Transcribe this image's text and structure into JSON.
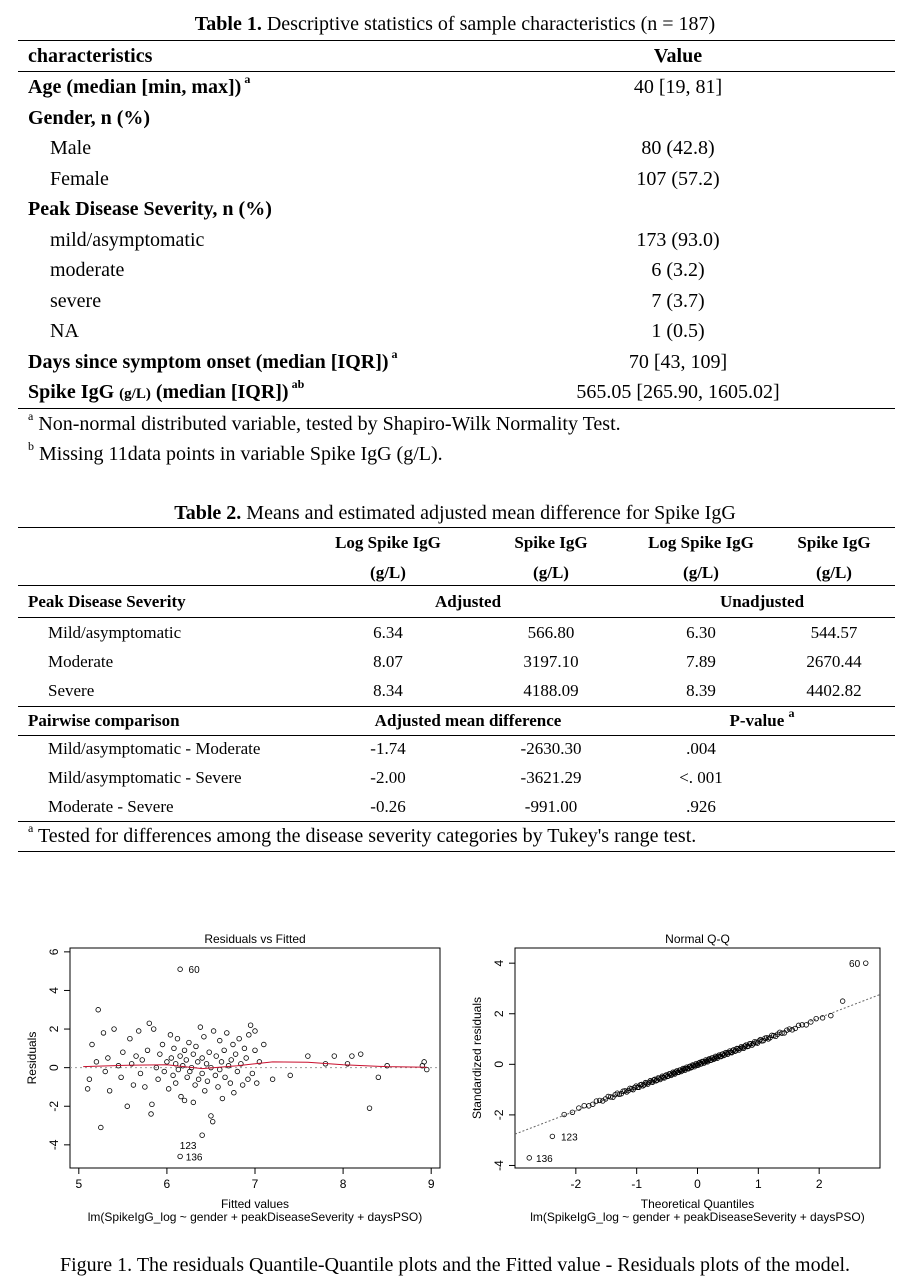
{
  "table1": {
    "label": "Table 1.",
    "title": " Descriptive statistics of sample characteristics (n = 187)",
    "header": {
      "col1": "characteristics",
      "col2": "Value"
    },
    "rows": [
      {
        "label": "Age (median [min, max])",
        "sup": "a",
        "value": "40 [19, 81]"
      },
      {
        "label": "Gender, n (%)",
        "value": ""
      },
      {
        "label": "Male",
        "value": "80 (42.8)"
      },
      {
        "label": "Female",
        "value": "107 (57.2)"
      },
      {
        "label": "Peak Disease Severity, n (%)",
        "value": ""
      },
      {
        "label": "mild/asymptomatic",
        "value": "173 (93.0)"
      },
      {
        "label": "moderate",
        "value": "6 (3.2)"
      },
      {
        "label": "severe",
        "value": "7 (3.7)"
      },
      {
        "label": "NA",
        "value": "1 (0.5)"
      },
      {
        "label": "Days since symptom onset (median [IQR])",
        "sup": "a",
        "value": "70 [43, 109]"
      },
      {
        "label_a": "Spike IgG ",
        "label_unit": "(g/L)",
        "label_b": " (median [IQR])",
        "sup": "ab",
        "value": "565.05 [265.90, 1605.02]"
      }
    ],
    "notes": [
      {
        "sup": "a",
        "text": " Non-normal distributed variable, tested by Shapiro-Wilk Normality Test."
      },
      {
        "sup": "b",
        "text": " Missing 11data points in variable Spike IgG (g/L)."
      }
    ]
  },
  "table2": {
    "label": "Table 2.",
    "title": " Means and estimated adjusted mean difference for Spike IgG",
    "col_headers": [
      {
        "line1": "Log Spike IgG",
        "line2": "(g/L)"
      },
      {
        "line1": "Spike IgG",
        "line2": "(g/L)"
      },
      {
        "line1": "Log Spike IgG",
        "line2": "(g/L)"
      },
      {
        "line1": "Spike IgG",
        "line2": "(g/L)"
      }
    ],
    "section1": {
      "label": "Peak Disease Severity",
      "group1": "Adjusted",
      "group2": "Unadjusted"
    },
    "rows1": [
      {
        "label": "Mild/asymptomatic",
        "v": [
          "6.34",
          "566.80",
          "6.30",
          "544.57"
        ]
      },
      {
        "label": "Moderate",
        "v": [
          "8.07",
          "3197.10",
          "7.89",
          "2670.44"
        ]
      },
      {
        "label": "Severe",
        "v": [
          "8.34",
          "4188.09",
          "8.39",
          "4402.82"
        ]
      }
    ],
    "section2": {
      "label": "Pairwise comparison",
      "group1": "Adjusted mean difference",
      "group2": "P-value",
      "group2_sup": "a"
    },
    "rows2": [
      {
        "label": "Mild/asymptomatic - Moderate",
        "v": [
          "-1.74",
          "-2630.30",
          ".004"
        ]
      },
      {
        "label": "Mild/asymptomatic - Severe",
        "v": [
          "-2.00",
          "-3621.29",
          "<. 001"
        ]
      },
      {
        "label": "Moderate - Severe",
        "v": [
          "-0.26",
          "-991.00",
          ".926"
        ]
      }
    ],
    "note": {
      "sup": "a",
      "text": " Tested for differences among the disease severity categories by Tukey's range test."
    }
  },
  "figure1": {
    "caption": "Figure 1. The residuals Quantile-Quantile plots and the Fitted value - Residuals plots of the model.",
    "colors": {
      "points": "#000000",
      "smooth": "#c8102e",
      "zero_line": "#999999",
      "qq_line": "#666666"
    }
  },
  "chart_data": [
    {
      "type": "scatter",
      "title": "Residuals vs Fitted",
      "xlabel": "Fitted values",
      "subtitle": "lm(SpikeIgG_log ~ gender + peakDiseaseSeverity + daysPSO)",
      "ylabel": "Residuals",
      "xlim": [
        4.9,
        9.1
      ],
      "ylim": [
        -5.2,
        6.2
      ],
      "xticks": [
        "5",
        "6",
        "7",
        "8",
        "9"
      ],
      "yticks": [
        "-4",
        "-2",
        "0",
        "2",
        "4",
        "6"
      ],
      "labeled_points": [
        {
          "x": 6.15,
          "y": 5.1,
          "label": "60"
        },
        {
          "x": 6.4,
          "y": -3.5,
          "label": "123"
        },
        {
          "x": 6.15,
          "y": -4.6,
          "label": "136"
        }
      ],
      "points": [
        [
          5.1,
          -1.1
        ],
        [
          5.12,
          -0.6
        ],
        [
          5.15,
          1.2
        ],
        [
          5.2,
          0.3
        ],
        [
          5.22,
          3.0
        ],
        [
          5.25,
          -3.1
        ],
        [
          5.28,
          1.8
        ],
        [
          5.3,
          -0.2
        ],
        [
          5.33,
          0.5
        ],
        [
          5.35,
          -1.2
        ],
        [
          5.4,
          2.0
        ],
        [
          5.45,
          0.1
        ],
        [
          5.48,
          -0.5
        ],
        [
          5.5,
          0.8
        ],
        [
          5.55,
          -2.0
        ],
        [
          5.58,
          1.5
        ],
        [
          5.6,
          0.2
        ],
        [
          5.62,
          -0.9
        ],
        [
          5.65,
          0.6
        ],
        [
          5.68,
          1.9
        ],
        [
          5.7,
          -0.3
        ],
        [
          5.72,
          0.4
        ],
        [
          5.75,
          -1.0
        ],
        [
          5.78,
          0.9
        ],
        [
          5.8,
          2.3
        ],
        [
          5.82,
          -2.4
        ],
        [
          5.83,
          -1.9
        ],
        [
          5.85,
          2.0
        ],
        [
          5.88,
          0.0
        ],
        [
          5.9,
          -0.6
        ],
        [
          5.92,
          0.7
        ],
        [
          5.95,
          1.2
        ],
        [
          5.97,
          -0.2
        ],
        [
          6.0,
          0.3
        ],
        [
          6.02,
          -1.1
        ],
        [
          6.04,
          1.7
        ],
        [
          6.05,
          0.5
        ],
        [
          6.07,
          -0.4
        ],
        [
          6.08,
          1.0
        ],
        [
          6.1,
          -0.8
        ],
        [
          6.1,
          0.2
        ],
        [
          6.12,
          1.5
        ],
        [
          6.13,
          -0.1
        ],
        [
          6.15,
          0.6
        ],
        [
          6.16,
          -1.5
        ],
        [
          6.18,
          0.1
        ],
        [
          6.2,
          -1.7
        ],
        [
          6.2,
          0.9
        ],
        [
          6.22,
          0.4
        ],
        [
          6.23,
          -0.5
        ],
        [
          6.25,
          1.3
        ],
        [
          6.26,
          -0.2
        ],
        [
          6.28,
          0.0
        ],
        [
          6.3,
          -1.8
        ],
        [
          6.3,
          0.7
        ],
        [
          6.32,
          -0.9
        ],
        [
          6.33,
          1.1
        ],
        [
          6.35,
          0.3
        ],
        [
          6.36,
          -0.6
        ],
        [
          6.38,
          2.1
        ],
        [
          6.4,
          -0.3
        ],
        [
          6.4,
          0.5
        ],
        [
          6.42,
          1.6
        ],
        [
          6.43,
          -1.2
        ],
        [
          6.45,
          0.2
        ],
        [
          6.46,
          -0.7
        ],
        [
          6.48,
          0.8
        ],
        [
          6.5,
          -2.5
        ],
        [
          6.5,
          0.0
        ],
        [
          6.52,
          -2.8
        ],
        [
          6.53,
          1.9
        ],
        [
          6.55,
          -0.4
        ],
        [
          6.56,
          0.6
        ],
        [
          6.58,
          -1.0
        ],
        [
          6.6,
          1.4
        ],
        [
          6.6,
          -0.1
        ],
        [
          6.62,
          0.3
        ],
        [
          6.63,
          -1.6
        ],
        [
          6.65,
          0.9
        ],
        [
          6.66,
          -0.5
        ],
        [
          6.68,
          1.8
        ],
        [
          6.7,
          0.1
        ],
        [
          6.72,
          -0.8
        ],
        [
          6.73,
          0.4
        ],
        [
          6.75,
          1.2
        ],
        [
          6.76,
          -1.3
        ],
        [
          6.78,
          0.7
        ],
        [
          6.8,
          -0.2
        ],
        [
          6.82,
          1.5
        ],
        [
          6.84,
          0.2
        ],
        [
          6.86,
          -0.9
        ],
        [
          6.88,
          1.0
        ],
        [
          6.9,
          0.5
        ],
        [
          6.92,
          -0.6
        ],
        [
          6.93,
          1.7
        ],
        [
          6.95,
          2.2
        ],
        [
          6.97,
          -0.3
        ],
        [
          7.0,
          0.9
        ],
        [
          7.0,
          1.9
        ],
        [
          7.02,
          -0.8
        ],
        [
          7.05,
          0.3
        ],
        [
          7.1,
          1.2
        ],
        [
          7.2,
          -0.6
        ],
        [
          7.4,
          -0.4
        ],
        [
          7.6,
          0.6
        ],
        [
          7.8,
          0.2
        ],
        [
          7.9,
          0.6
        ],
        [
          8.05,
          0.2
        ],
        [
          8.3,
          -2.1
        ],
        [
          8.4,
          -0.5
        ],
        [
          8.5,
          0.1
        ],
        [
          8.9,
          0.1
        ],
        [
          8.95,
          -0.1
        ],
        [
          8.92,
          0.3
        ],
        [
          8.2,
          0.7
        ],
        [
          8.1,
          0.6
        ]
      ],
      "smooth": [
        [
          5.05,
          0.05
        ],
        [
          5.5,
          0.12
        ],
        [
          6.0,
          0.15
        ],
        [
          6.4,
          -0.05
        ],
        [
          6.8,
          0.1
        ],
        [
          7.2,
          0.3
        ],
        [
          7.6,
          0.28
        ],
        [
          8.0,
          0.15
        ],
        [
          8.5,
          0.05
        ],
        [
          8.95,
          0.02
        ]
      ]
    },
    {
      "type": "scatter",
      "title": "Normal Q-Q",
      "xlabel": "Theoretical Quantiles",
      "subtitle": "lm(SpikeIgG_log ~ gender + peakDiseaseSeverity + daysPSO)",
      "ylabel": "Standardized residuals",
      "xlim": [
        -3.0,
        3.0
      ],
      "ylim": [
        -4.1,
        4.6
      ],
      "xticks": [
        "-2",
        "-1",
        "0",
        "1",
        "2"
      ],
      "yticks": [
        "-4",
        "-2",
        "0",
        "2",
        "4"
      ],
      "labeled_points": [
        {
          "x": 2.78,
          "y": 4.0,
          "label": "60"
        },
        {
          "x": -2.37,
          "y": -2.85,
          "label": "123"
        },
        {
          "x": -2.78,
          "y": -3.7,
          "label": "136"
        }
      ],
      "reference_line": {
        "intercept": 0.0,
        "slope": 0.92
      },
      "n_points": 176
    }
  ]
}
